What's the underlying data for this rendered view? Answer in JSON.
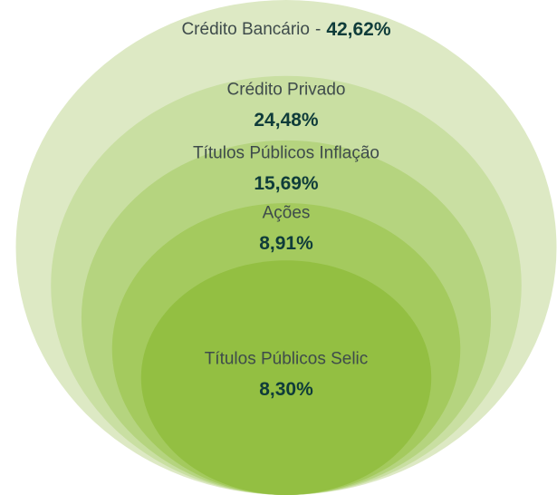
{
  "chart_data": {
    "type": "nested-ellipses",
    "categories": [
      "Crédito Bancário",
      "Crédito Privado",
      "Títulos Públicos Inflação",
      "Ações",
      "Títulos Públicos Selic"
    ],
    "values": [
      42.62,
      24.48,
      15.69,
      8.91,
      8.3
    ],
    "value_labels": [
      "42,62%",
      "24,48%",
      "15,69%",
      "8,91%",
      "8,30%"
    ],
    "colors": [
      "#dde9c4",
      "#c9dfa2",
      "#b5d47f",
      "#a4ca5e",
      "#93bf42"
    ],
    "label_separator": "-"
  }
}
